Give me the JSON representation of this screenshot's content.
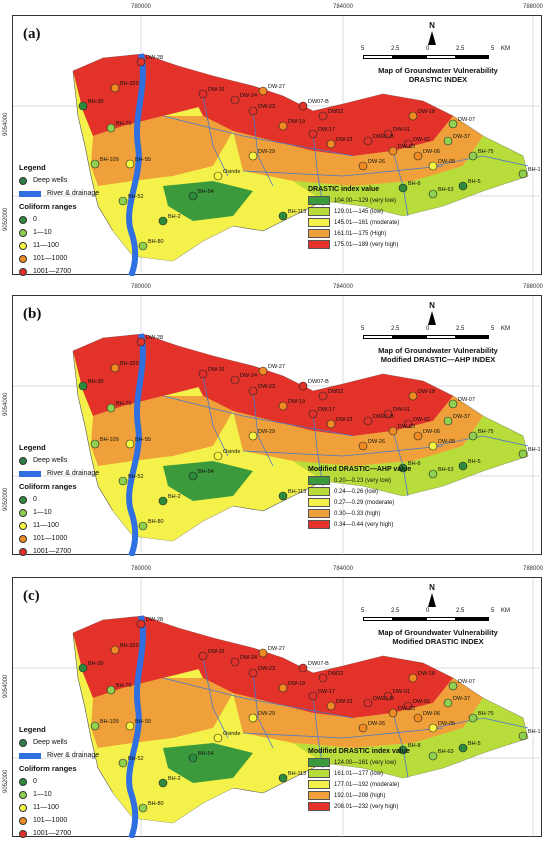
{
  "axes": {
    "x_ticks": [
      "780000",
      "784000",
      "788000"
    ],
    "y_ticks": [
      "9054000",
      "9052000"
    ]
  },
  "scale": {
    "labels": [
      "5",
      "2.5",
      "0",
      "2.5",
      "5",
      "KM"
    ]
  },
  "north_label": "N",
  "legend": {
    "title": "Legend",
    "deep_wells": "Deep wells",
    "river": "River & drainage",
    "coliform_title": "Coliform ranges",
    "coliform": [
      {
        "label": "0",
        "color": "#2e8b3d"
      },
      {
        "label": "1—10",
        "color": "#8fd14f"
      },
      {
        "label": "11—100",
        "color": "#f5f542"
      },
      {
        "label": "101—1000",
        "color": "#f08a24"
      },
      {
        "label": "1001—2700",
        "color": "#e0322a"
      }
    ]
  },
  "well_labels": [
    "DW-28",
    "BH-320",
    "BH-30",
    "BH-70",
    "BH-109",
    "BH-S5",
    "BH-52",
    "BH-2",
    "BH-80",
    "DW-31",
    "DW-24",
    "DW-27",
    "DW07-B",
    "DW22",
    "DW-23",
    "DW-17",
    "DW-19",
    "DW-21",
    "Osinde",
    "BH-54",
    "BH-113",
    "DW21-B",
    "DW-01",
    "DW-03",
    "DW-02",
    "DW-06",
    "DW-29",
    "DW-26",
    "DW-05",
    "DW-18",
    "DW-07",
    "DW-37",
    "BH-75",
    "BH-1",
    "BH-8",
    "BH-63",
    "BH-5"
  ],
  "panels": [
    {
      "tag": "(a)",
      "title": [
        "Map of Groundwater Vulnerability",
        "DRASTIC INDEX"
      ],
      "ramp_title": "DRASTIC index value",
      "classes": [
        {
          "label": "104.00—129 (very low)",
          "color": "#3b9a3b"
        },
        {
          "label": "129.01—145 (low)",
          "color": "#b8dc3a"
        },
        {
          "label": "145.01—161 (moderate)",
          "color": "#f4f24a"
        },
        {
          "label": "161.01—175 (High)",
          "color": "#f0a03a"
        },
        {
          "label": "175.01—189 (very high)",
          "color": "#e2322a"
        }
      ]
    },
    {
      "tag": "(b)",
      "title": [
        "Map of Groundwater Vulnerability",
        "Modified DRASTIC—AHP INDEX"
      ],
      "ramp_title": "Modified DRASTIC—AHP value",
      "classes": [
        {
          "label": "0.20—0.23 (very low)",
          "color": "#3b9a3b"
        },
        {
          "label": "0.24—0.26 (low)",
          "color": "#b8dc3a"
        },
        {
          "label": "0.27—0.29 (moderate)",
          "color": "#f4f24a"
        },
        {
          "label": "0.30—0.33 (high)",
          "color": "#f0a03a"
        },
        {
          "label": "0.34—0.44 (very high)",
          "color": "#e2322a"
        }
      ]
    },
    {
      "tag": "(c)",
      "title": [
        "Map of Groundwater Vulnerability",
        "Modified DRASTIC INDEX"
      ],
      "ramp_title": "Modified DRASTIC index value",
      "classes": [
        {
          "label": "124.00—161 (very low)",
          "color": "#3b9a3b"
        },
        {
          "label": "161.01—177 (low)",
          "color": "#b8dc3a"
        },
        {
          "label": "177.01—192 (moderate)",
          "color": "#f4f24a"
        },
        {
          "label": "192.01—208 (high)",
          "color": "#f0a03a"
        },
        {
          "label": "208.01—232 (very high)",
          "color": "#e2322a"
        }
      ]
    }
  ]
}
